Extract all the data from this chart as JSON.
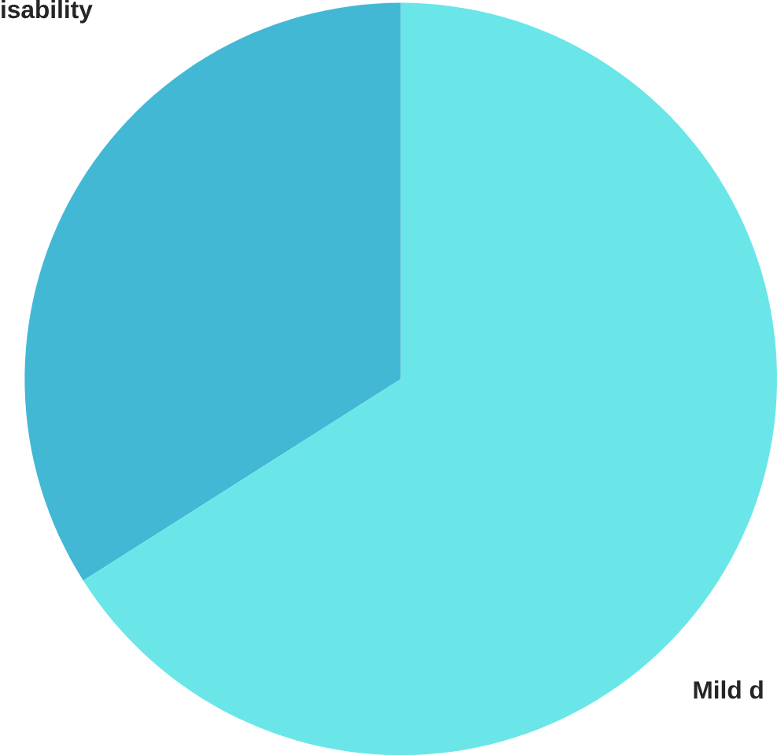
{
  "chart_data": {
    "type": "pie",
    "categories": [
      "isability",
      "Mild d"
    ],
    "values": [
      34,
      66
    ],
    "colors": [
      "#43b8d5",
      "#6ae6e9"
    ]
  }
}
